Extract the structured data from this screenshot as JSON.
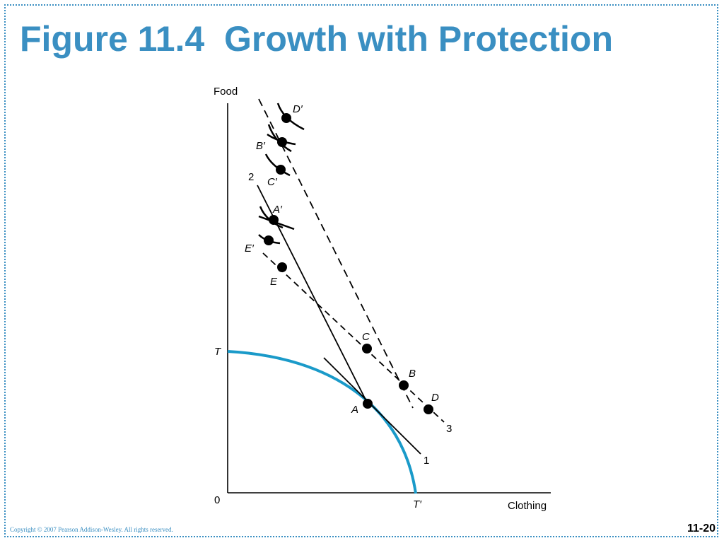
{
  "title": "Figure 11.4  Growth with Protection",
  "copyright": "Copyright © 2007 Pearson Addison-Wesley. All rights reserved.",
  "page_number": "11-20",
  "diagram": {
    "y_axis_label": "Food",
    "x_axis_label": "Clothing",
    "origin_label": "0",
    "curve_label_top": "T",
    "curve_label_bottom": "T′",
    "line_labels": {
      "line1": "1",
      "line2": "2",
      "line3": "3"
    },
    "points": {
      "A": "A",
      "B": "B",
      "C": "C",
      "D": "D",
      "E": "E",
      "A_prime": "A′",
      "B_prime": "B′",
      "C_prime": "C′",
      "D_prime": "D′",
      "E_prime": "E′"
    },
    "colors": {
      "curve": "#1a9ac9",
      "lines": "#000000",
      "title": "#3a8fc2"
    }
  }
}
